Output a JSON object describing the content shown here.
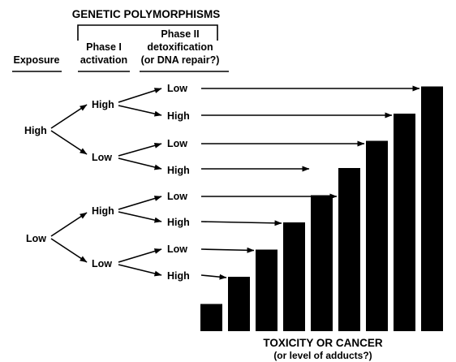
{
  "header": {
    "title": "GENETIC POLYMORPHISMS",
    "exposure": "Exposure",
    "phase1_line1": "Phase I",
    "phase1_line2": "activation",
    "phase2_line1": "Phase II",
    "phase2_line2": "detoxification",
    "phase2_line3": "(or DNA repair?)"
  },
  "exposure_levels": [
    "High",
    "Low"
  ],
  "phase1_levels": [
    "High",
    "Low",
    "High",
    "Low"
  ],
  "phase2_levels": [
    "Low",
    "High",
    "Low",
    "High",
    "Low",
    "High",
    "Low",
    "High"
  ],
  "outcome": {
    "title": "TOXICITY OR CANCER",
    "subtitle": "(or level of adducts?)"
  },
  "bars": {
    "levels": [
      1,
      2,
      3,
      4,
      5,
      6,
      7,
      8,
      9
    ],
    "mapping_from_combo_to_bar": [
      9,
      8,
      7,
      5,
      6,
      4,
      3,
      2
    ]
  },
  "colors": {
    "ink": "#000000",
    "background": "#ffffff"
  }
}
